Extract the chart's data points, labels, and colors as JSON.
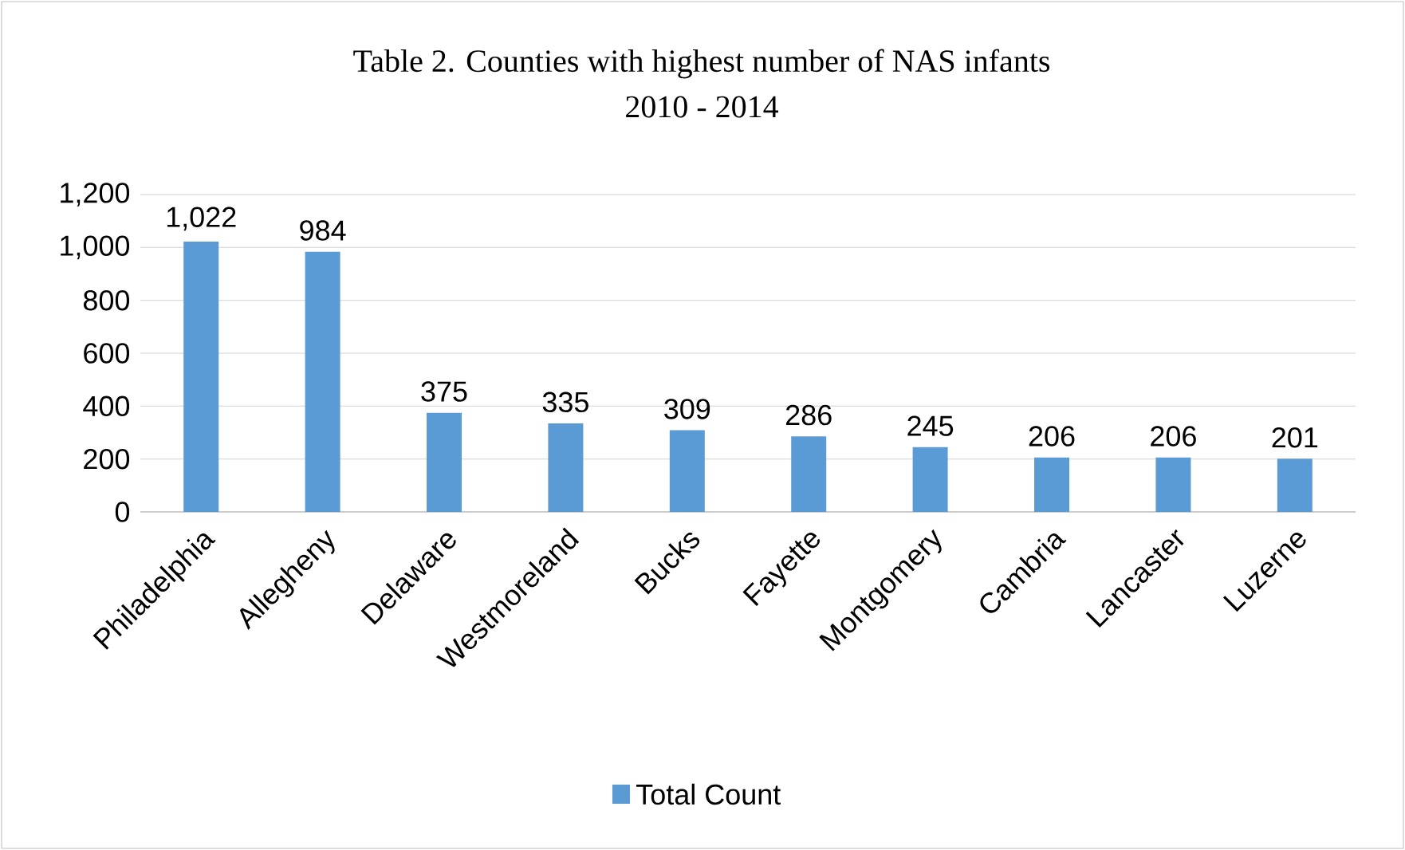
{
  "chart_data": {
    "type": "bar",
    "title": "Table 2. Counties with highest number of NAS infants",
    "subtitle": "2010 - 2014",
    "categories": [
      "Philadelphia",
      "Allegheny",
      "Delaware",
      "Westmoreland",
      "Bucks",
      "Fayette",
      "Montgomery",
      "Cambria",
      "Lancaster",
      "Luzerne"
    ],
    "series": [
      {
        "name": "Total Count",
        "color": "#5b9bd5",
        "values": [
          1022,
          984,
          375,
          335,
          309,
          286,
          245,
          206,
          206,
          201
        ]
      }
    ],
    "value_labels": [
      "1,022",
      "984",
      "375",
      "335",
      "309",
      "286",
      "245",
      "206",
      "206",
      "201"
    ],
    "ylim": [
      0,
      1200
    ],
    "yticks": [
      0,
      200,
      400,
      600,
      800,
      {
        "value": 1000,
        "label": "1,000"
      },
      {
        "value": 1200,
        "label": "1,200"
      }
    ],
    "grid": "y",
    "legend": "bottom"
  }
}
